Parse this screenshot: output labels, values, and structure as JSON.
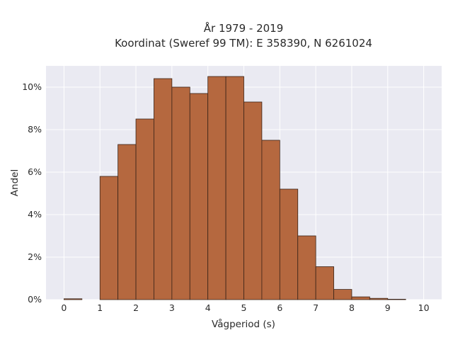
{
  "chart_data": {
    "type": "bar",
    "title_lines": [
      "År 1979 - 2019",
      "Koordinat (Sweref 99 TM): E 358390, N 6261024"
    ],
    "xlabel": "Vågperiod (s)",
    "ylabel": "Andel",
    "xlim": [
      -0.5,
      10.5
    ],
    "ylim": [
      0,
      0.11
    ],
    "x_ticks": [
      0,
      1,
      2,
      3,
      4,
      5,
      6,
      7,
      8,
      9,
      10
    ],
    "x_tick_labels": [
      "0",
      "1",
      "2",
      "3",
      "4",
      "5",
      "6",
      "7",
      "8",
      "9",
      "10"
    ],
    "y_ticks": [
      0,
      0.02,
      0.04,
      0.06,
      0.08,
      0.1
    ],
    "y_tick_labels": [
      "0%",
      "2%",
      "4%",
      "6%",
      "8%",
      "10%"
    ],
    "bin_width": 0.5,
    "bin_starts": [
      0,
      0.5,
      1,
      1.5,
      2,
      2.5,
      3,
      3.5,
      4,
      4.5,
      5,
      5.5,
      6,
      6.5,
      7,
      7.5,
      8,
      8.5,
      9,
      9.5
    ],
    "values": [
      0.0004,
      0,
      0.058,
      0.073,
      0.085,
      0.104,
      0.1,
      0.097,
      0.105,
      0.105,
      0.093,
      0.075,
      0.052,
      0.03,
      0.0155,
      0.0048,
      0.0013,
      0.0006,
      0.0002,
      0
    ],
    "bar_color": "#b5683f",
    "bar_edge_color": "#3a2418",
    "plot_background": "#eaeaf2",
    "grid": true,
    "grid_color": "#ffffff"
  }
}
